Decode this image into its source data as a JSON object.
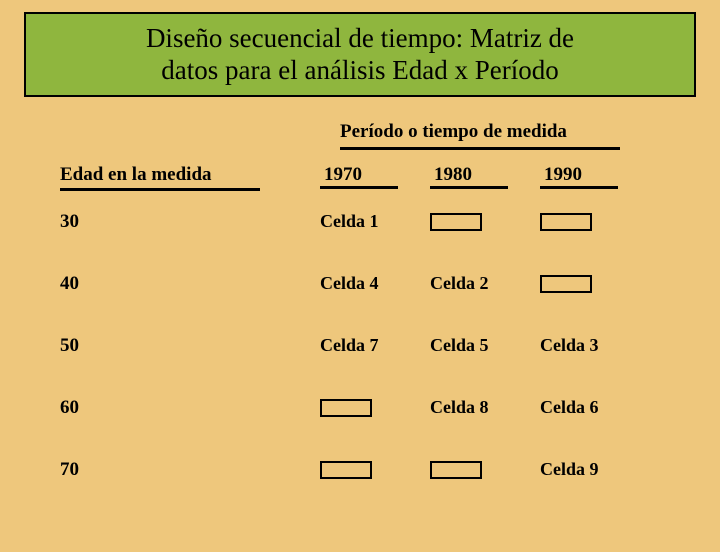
{
  "title": {
    "line1": "Diseño secuencial de tiempo: Matriz de",
    "line2": "datos para el análisis Edad x Período"
  },
  "period_header": "Período  o tiempo de medida",
  "row_header": "Edad en la medida",
  "periods": [
    "1970",
    "1980",
    "1990"
  ],
  "ages": [
    "30",
    "40",
    "50",
    "60",
    "70"
  ],
  "cells": {
    "r0c0": "Celda 1",
    "r0c1": "",
    "r0c2": "",
    "r1c0": "Celda 4",
    "r1c1": "Celda 2",
    "r1c2": "",
    "r2c0": "Celda 7",
    "r2c1": "Celda 5",
    "r2c2": "Celda 3",
    "r3c0": "",
    "r3c1": "Celda 8",
    "r3c2": "Celda 6",
    "r4c0": "",
    "r4c1": "",
    "r4c2": "Celda 9"
  },
  "colors": {
    "background": "#eec77c",
    "title_bg": "#8fb63e",
    "border": "#000000",
    "text": "#000000"
  }
}
